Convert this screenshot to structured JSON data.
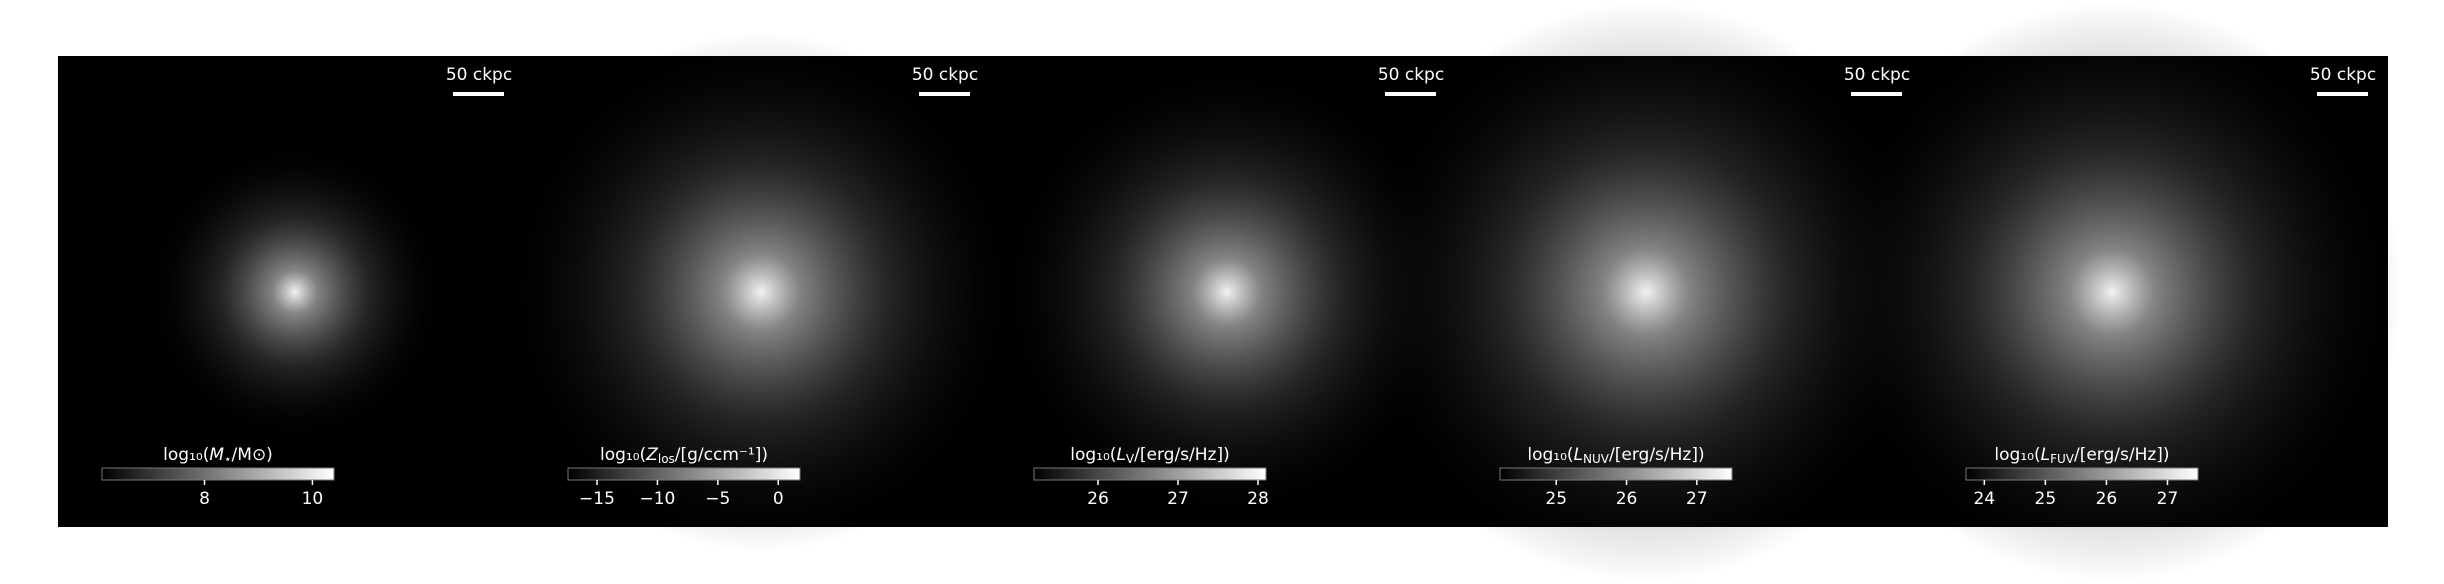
{
  "chart_data": [
    {
      "type": "image",
      "scalebar": "50 ckpc",
      "colorbar": {
        "label": {
          "pre": "log₁₀(",
          "var": "M",
          "sub": "⋆",
          "post": "/M⊙)"
        },
        "lim": [
          6.1,
          10.4
        ],
        "ticks": [
          8,
          10
        ]
      }
    },
    {
      "type": "image",
      "scalebar": "50 ckpc",
      "colorbar": {
        "label": {
          "pre": "log₁₀(",
          "var": "Z",
          "sub": "los",
          "post": "/[g/ccm⁻¹])"
        },
        "lim": [
          -17.4,
          1.8
        ],
        "ticks": [
          {
            "value": -15,
            "label": "−15"
          },
          {
            "value": -10,
            "label": "−10"
          },
          {
            "value": -5,
            "label": "−5"
          },
          0
        ]
      }
    },
    {
      "type": "image",
      "scalebar": "50 ckpc",
      "colorbar": {
        "label": {
          "pre": "log₁₀(",
          "var": "L",
          "sub": "V",
          "post": "/[erg/s/Hz])"
        },
        "lim": [
          25.2,
          28.1
        ],
        "ticks": [
          26,
          27,
          28
        ]
      }
    },
    {
      "type": "image",
      "scalebar": "50 ckpc",
      "colorbar": {
        "label": {
          "pre": "log₁₀(",
          "var": "L",
          "sub": "NUV",
          "post": "/[erg/s/Hz])"
        },
        "lim": [
          24.2,
          27.5
        ],
        "ticks": [
          25,
          26,
          27
        ]
      }
    },
    {
      "type": "image",
      "scalebar": "50 ckpc",
      "colorbar": {
        "label": {
          "pre": "log₁₀(",
          "var": "L",
          "sub": "FUV",
          "post": "/[erg/s/Hz])"
        },
        "lim": [
          23.7,
          27.5
        ],
        "ticks": [
          24,
          25,
          26,
          27
        ]
      }
    }
  ]
}
